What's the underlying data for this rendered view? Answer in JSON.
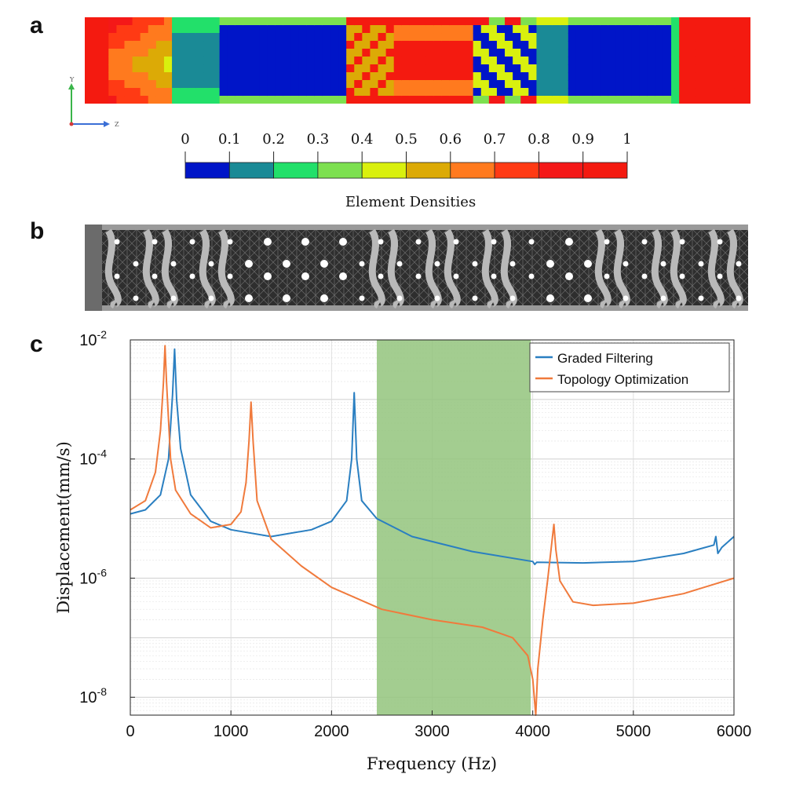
{
  "panels": {
    "a": "a",
    "b": "b",
    "c": "c"
  },
  "triad": {
    "y": "Y",
    "z": "Z"
  },
  "colorbar": {
    "title": "Element Densities",
    "ticks": [
      "0",
      "0.1",
      "0.2",
      "0.3",
      "0.4",
      "0.5",
      "0.6",
      "0.7",
      "0.8",
      "0.9",
      "1"
    ],
    "colors": [
      "#0015c8",
      "#1a8a96",
      "#22e06a",
      "#7de050",
      "#d9f00e",
      "#dcaa06",
      "#ff7a1e",
      "#ff3a14",
      "#f41818",
      "#f41a10"
    ]
  },
  "chart_data": {
    "type": "line",
    "xlabel": "Frequency (Hz)",
    "ylabel": "Displacement(mm/s)",
    "xlim": [
      0,
      6000
    ],
    "ylim_log10": [
      -8.3,
      -2
    ],
    "y_scale": "log",
    "grid": true,
    "x_ticks": [
      "0",
      "1000",
      "2000",
      "3000",
      "4000",
      "5000",
      "6000"
    ],
    "y_ticks": [
      {
        "base": "10",
        "exp": "-2"
      },
      {
        "base": "10",
        "exp": "-4"
      },
      {
        "base": "10",
        "exp": "-6"
      },
      {
        "base": "10",
        "exp": "-8"
      }
    ],
    "band": {
      "x0": 2450,
      "x1": 3980,
      "color": "#93c47d"
    },
    "legend_position": "top-right",
    "series": [
      {
        "name": "Graded Filtering",
        "color": "#2a7fc1",
        "points": [
          [
            0,
            1.2e-05
          ],
          [
            150,
            1.4e-05
          ],
          [
            300,
            2.5e-05
          ],
          [
            380,
            0.0001
          ],
          [
            420,
            0.0012
          ],
          [
            440,
            0.007
          ],
          [
            460,
            0.001
          ],
          [
            500,
            0.00015
          ],
          [
            600,
            2.5e-05
          ],
          [
            800,
            9e-06
          ],
          [
            1000,
            6.5e-06
          ],
          [
            1400,
            5e-06
          ],
          [
            1800,
            6.5e-06
          ],
          [
            2000,
            9e-06
          ],
          [
            2150,
            2e-05
          ],
          [
            2200,
            0.0001
          ],
          [
            2225,
            0.0013
          ],
          [
            2250,
            0.0001
          ],
          [
            2300,
            2e-05
          ],
          [
            2450,
            1e-05
          ],
          [
            2800,
            5e-06
          ],
          [
            3400,
            2.8e-06
          ],
          [
            4000,
            1.9e-06
          ],
          [
            4020,
            1.7e-06
          ],
          [
            4040,
            1.85e-06
          ],
          [
            4500,
            1.8e-06
          ],
          [
            5000,
            1.9e-06
          ],
          [
            5500,
            2.6e-06
          ],
          [
            5800,
            3.6e-06
          ],
          [
            5820,
            5e-06
          ],
          [
            5840,
            2.6e-06
          ],
          [
            5880,
            3.3e-06
          ],
          [
            6000,
            5e-06
          ]
        ]
      },
      {
        "name": "Topology Optimization",
        "color": "#f07a3c",
        "points": [
          [
            0,
            1.4e-05
          ],
          [
            150,
            2e-05
          ],
          [
            250,
            6e-05
          ],
          [
            300,
            0.0003
          ],
          [
            330,
            0.002
          ],
          [
            345,
            0.008
          ],
          [
            360,
            0.002
          ],
          [
            400,
            0.0001
          ],
          [
            450,
            3e-05
          ],
          [
            600,
            1.2e-05
          ],
          [
            800,
            7e-06
          ],
          [
            1000,
            8e-06
          ],
          [
            1100,
            1.3e-05
          ],
          [
            1150,
            4e-05
          ],
          [
            1180,
            0.0002
          ],
          [
            1200,
            0.0009
          ],
          [
            1220,
            0.0002
          ],
          [
            1260,
            2e-05
          ],
          [
            1400,
            4.5e-06
          ],
          [
            1700,
            1.6e-06
          ],
          [
            2000,
            7e-07
          ],
          [
            2500,
            3e-07
          ],
          [
            3000,
            2e-07
          ],
          [
            3500,
            1.5e-07
          ],
          [
            3800,
            1e-07
          ],
          [
            3950,
            5e-08
          ],
          [
            4000,
            2e-08
          ],
          [
            4030,
            5e-09
          ],
          [
            4050,
            3e-08
          ],
          [
            4100,
            2e-07
          ],
          [
            4150,
            1e-06
          ],
          [
            4190,
            4e-06
          ],
          [
            4210,
            8e-06
          ],
          [
            4230,
            3e-06
          ],
          [
            4270,
            9e-07
          ],
          [
            4400,
            4e-07
          ],
          [
            4600,
            3.5e-07
          ],
          [
            5000,
            3.8e-07
          ],
          [
            5500,
            5.5e-07
          ],
          [
            6000,
            1e-06
          ]
        ]
      }
    ]
  }
}
